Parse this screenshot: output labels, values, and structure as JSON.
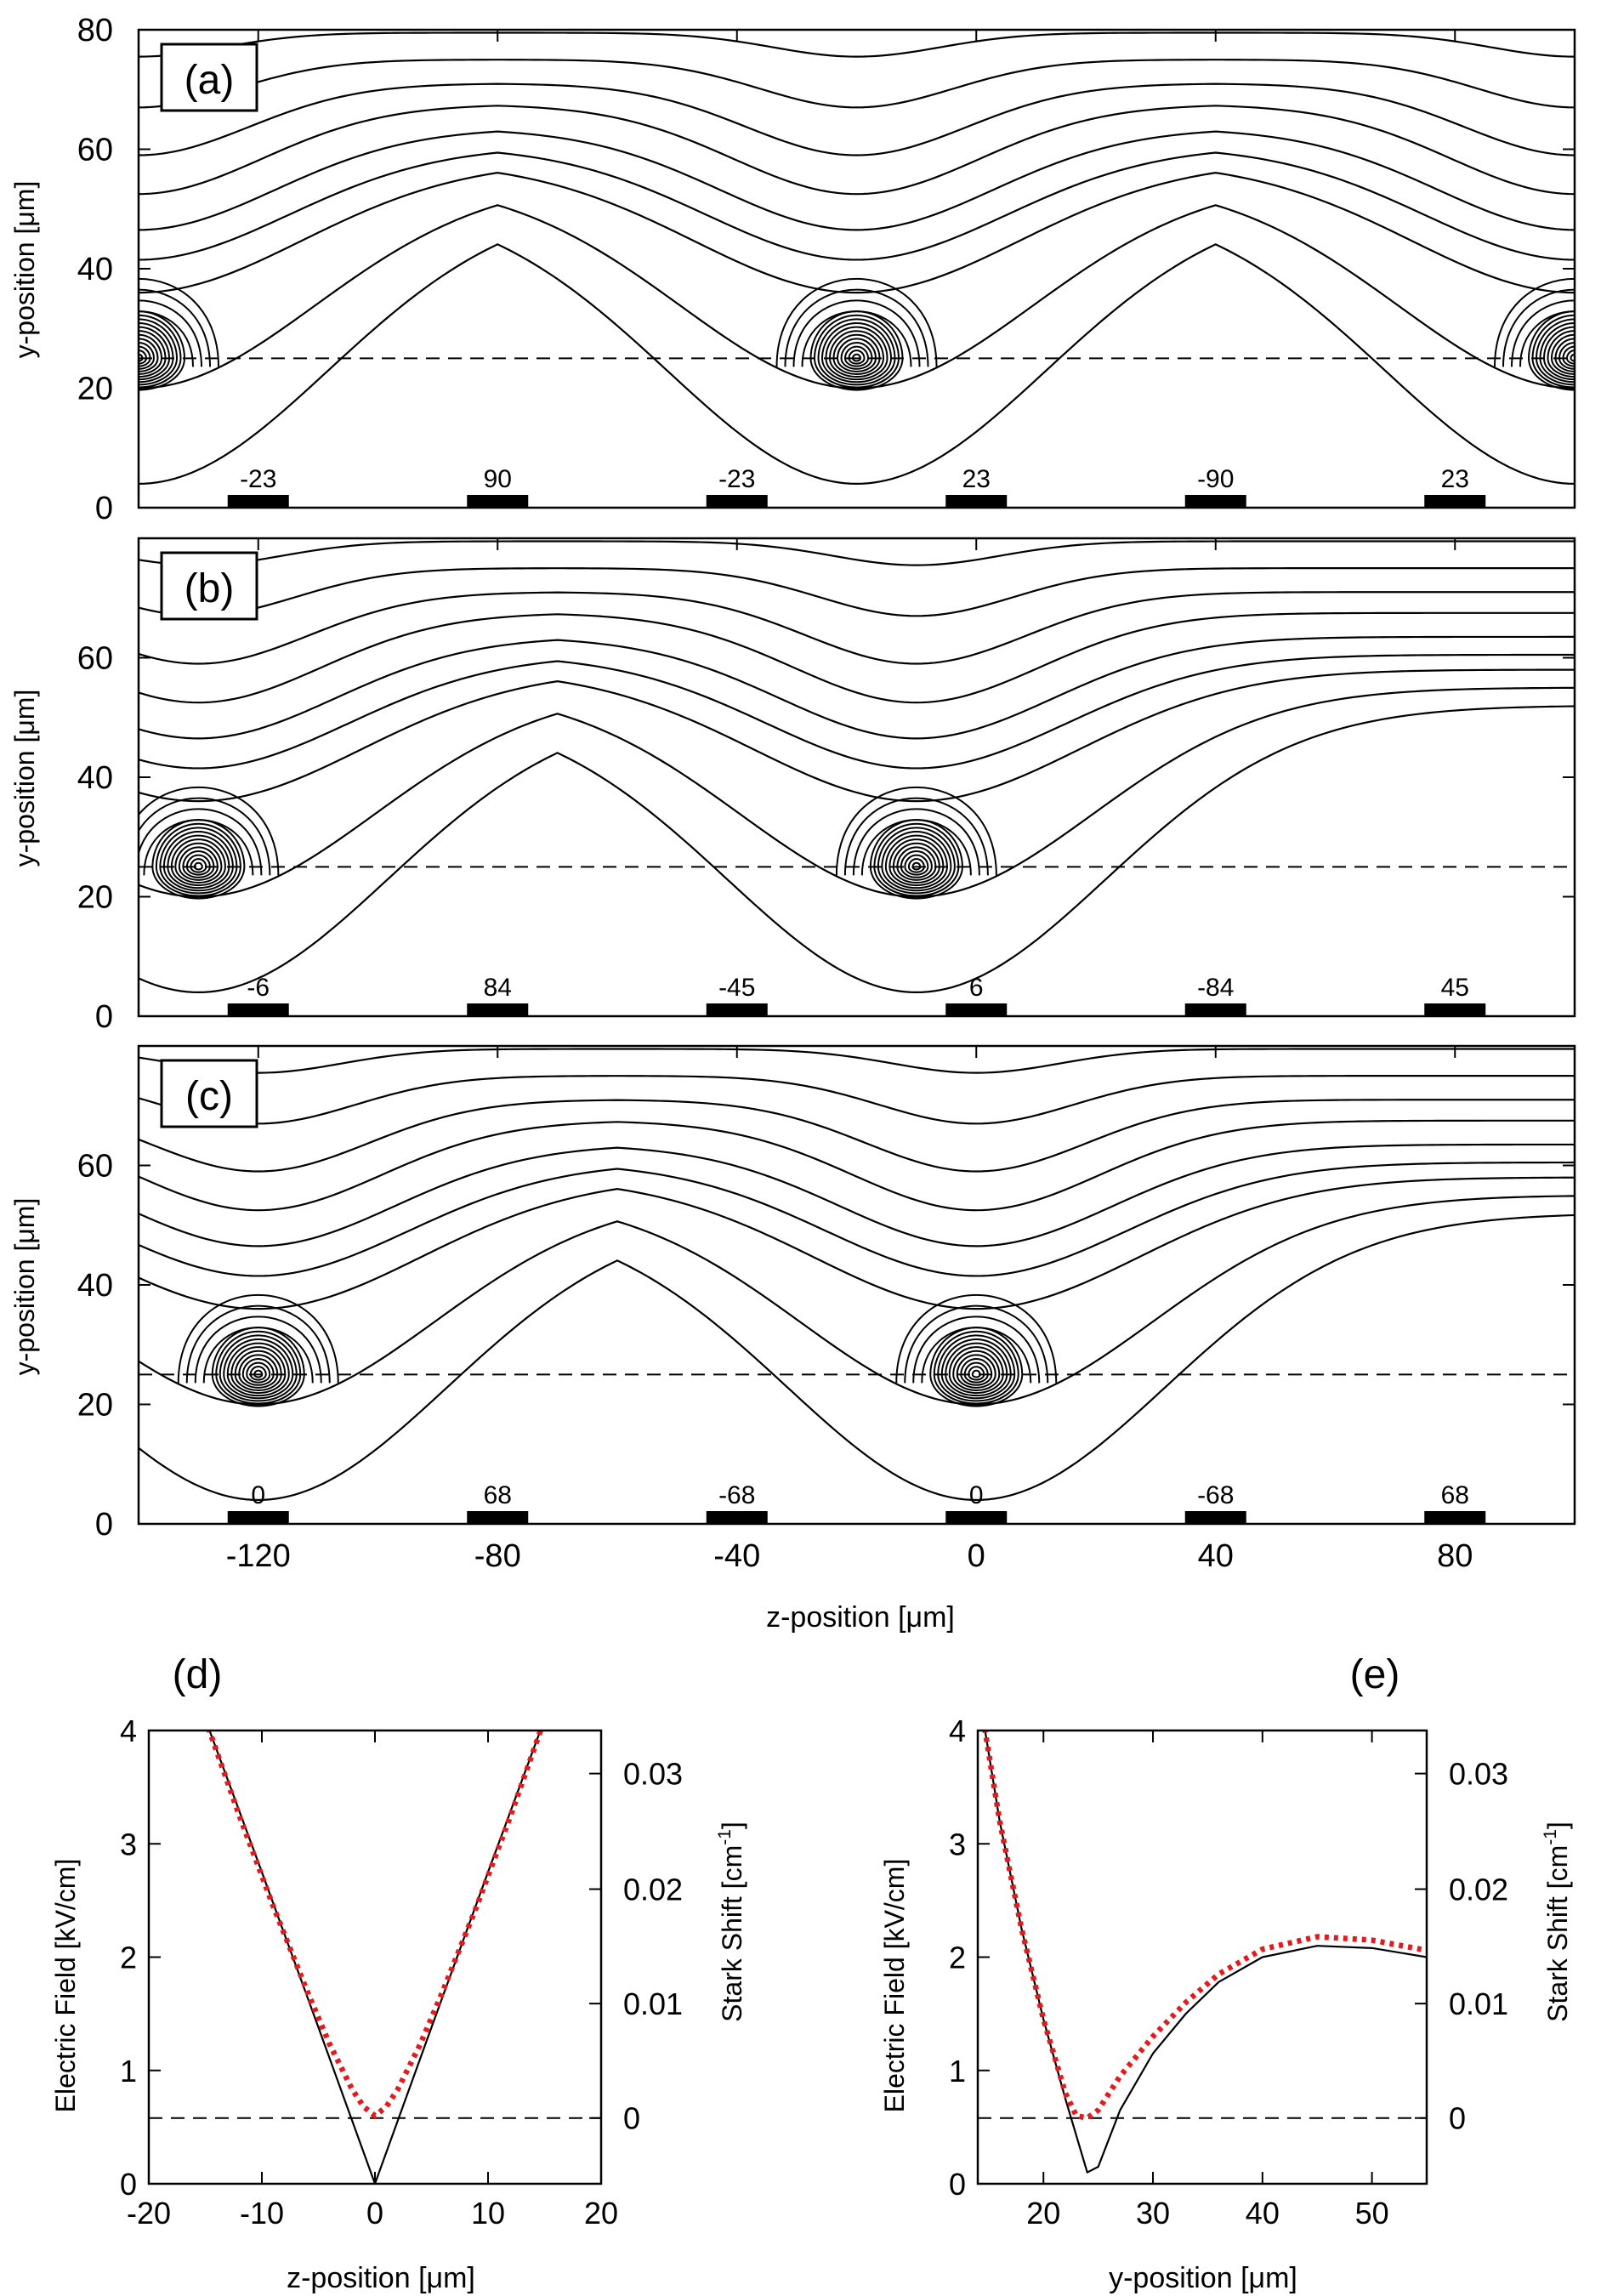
{
  "colors": {
    "axis": "#000000",
    "contour": "#000000",
    "stark": "#e41a1c",
    "electrode": "#000000"
  },
  "chart_data": [
    {
      "id": "panel-a",
      "type": "contour",
      "panel_label": "(a)",
      "ylabel": "y-position [μm]",
      "xlim": [
        -140,
        100
      ],
      "ylim": [
        0,
        80
      ],
      "yticks": [
        0,
        20,
        40,
        60,
        80
      ],
      "xticks": [
        -120,
        -80,
        -40,
        0,
        40,
        80
      ],
      "trap_height_line": 25,
      "electrode_positions": [
        -120,
        -80,
        -40,
        0,
        40,
        80
      ],
      "electrode_voltages": [
        "-23",
        "90",
        "-23",
        "23",
        "-90",
        "23"
      ],
      "trap_centers": [
        [
          -140,
          25
        ],
        [
          -20,
          25
        ],
        [
          100,
          25
        ]
      ]
    },
    {
      "id": "panel-b",
      "type": "contour",
      "panel_label": "(b)",
      "ylabel": "y-position [μm]",
      "xlim": [
        -140,
        100
      ],
      "ylim": [
        0,
        80
      ],
      "yticks": [
        0,
        20,
        40,
        60
      ],
      "xticks": [
        -120,
        -80,
        -40,
        0,
        40,
        80
      ],
      "trap_height_line": 25,
      "electrode_positions": [
        -120,
        -80,
        -40,
        0,
        40,
        80
      ],
      "electrode_voltages": [
        "-6",
        "84",
        "-45",
        "6",
        "-84",
        "45"
      ],
      "trap_centers": [
        [
          -130,
          25
        ],
        [
          -10,
          25
        ]
      ]
    },
    {
      "id": "panel-c",
      "type": "contour",
      "panel_label": "(c)",
      "ylabel": "y-position [μm]",
      "xlabel": "z-position [μm]",
      "xlim": [
        -140,
        100
      ],
      "ylim": [
        0,
        80
      ],
      "yticks": [
        0,
        20,
        40,
        60
      ],
      "xticks": [
        -120,
        -80,
        -40,
        0,
        40,
        80
      ],
      "x_tick_labels": [
        "-120",
        "-80",
        "-40",
        "0",
        "40",
        "80"
      ],
      "trap_height_line": 25,
      "electrode_positions": [
        -120,
        -80,
        -40,
        0,
        40,
        80
      ],
      "electrode_voltages": [
        "0",
        "68",
        "-68",
        "0",
        "-68",
        "68"
      ],
      "trap_centers": [
        [
          -120,
          25
        ],
        [
          0,
          25
        ]
      ]
    },
    {
      "id": "panel-d",
      "type": "line",
      "panel_label": "(d)",
      "xlabel": "z-position [μm]",
      "ylabel": "Electric Field [kV/cm]",
      "y2label": "Stark Shift [cm",
      "y2label_sup": "-1",
      "y2label_end": "]",
      "xlim": [
        -20,
        20
      ],
      "ylim": [
        0,
        4
      ],
      "xticks": [
        -20,
        -10,
        0,
        10,
        20
      ],
      "x_tick_labels": [
        "-20",
        "-10",
        "0",
        "10",
        "20"
      ],
      "yticks": [
        0,
        1,
        2,
        3,
        4
      ],
      "y_tick_labels": [
        "0",
        "1",
        "2",
        "3",
        "4"
      ],
      "y2ticks": [
        {
          "value": 0.58,
          "label": "0"
        },
        {
          "value": 1.59,
          "label": "0.01"
        },
        {
          "value": 2.6,
          "label": "0.02"
        },
        {
          "value": 3.62,
          "label": "0.03"
        }
      ],
      "dashed_line_y": 0.58,
      "series": [
        {
          "name": "Electric Field",
          "style": "solid",
          "x": [
            -15,
            -10,
            -5,
            0,
            5,
            10,
            15
          ],
          "y": [
            4.1,
            2.75,
            1.38,
            0.0,
            1.38,
            2.75,
            4.1
          ]
        },
        {
          "name": "Stark Shift",
          "style": "dotted",
          "x": [
            -15,
            -12,
            -9,
            -6,
            -4,
            -2,
            -1,
            0,
            1,
            2,
            4,
            6,
            9,
            12,
            15
          ],
          "y": [
            4.1,
            3.25,
            2.45,
            1.7,
            1.23,
            0.83,
            0.68,
            0.6,
            0.68,
            0.83,
            1.23,
            1.7,
            2.45,
            3.25,
            4.1
          ]
        }
      ]
    },
    {
      "id": "panel-e",
      "type": "line",
      "panel_label": "(e)",
      "xlabel": "y-position [μm]",
      "ylabel": "Electric Field [kV/cm]",
      "y2label": "Stark Shift [cm",
      "y2label_sup": "-1",
      "y2label_end": "]",
      "xlim": [
        14,
        55
      ],
      "ylim": [
        0,
        4
      ],
      "xticks": [
        20,
        30,
        40,
        50
      ],
      "x_tick_labels": [
        "20",
        "30",
        "40",
        "50"
      ],
      "yticks": [
        0,
        1,
        2,
        3,
        4
      ],
      "y_tick_labels": [
        "0",
        "1",
        "2",
        "3",
        "4"
      ],
      "y2ticks": [
        {
          "value": 0.58,
          "label": "0"
        },
        {
          "value": 1.59,
          "label": "0.01"
        },
        {
          "value": 2.6,
          "label": "0.02"
        },
        {
          "value": 3.62,
          "label": "0.03"
        }
      ],
      "dashed_line_y": 0.58,
      "series": [
        {
          "name": "Electric Field",
          "style": "solid",
          "x": [
            14.5,
            16,
            18,
            20,
            22,
            24,
            25,
            27,
            30,
            33,
            36,
            40,
            45,
            50,
            55
          ],
          "y": [
            4.1,
            3.2,
            2.25,
            1.45,
            0.75,
            0.1,
            0.15,
            0.65,
            1.15,
            1.5,
            1.78,
            2.0,
            2.1,
            2.08,
            2.0
          ]
        },
        {
          "name": "Stark Shift",
          "style": "dotted",
          "x": [
            14.5,
            16,
            18,
            20,
            22,
            23,
            24,
            25,
            27,
            30,
            33,
            36,
            40,
            45,
            50,
            55
          ],
          "y": [
            4.1,
            3.2,
            2.25,
            1.45,
            0.8,
            0.6,
            0.58,
            0.65,
            0.95,
            1.3,
            1.6,
            1.85,
            2.07,
            2.18,
            2.15,
            2.06
          ]
        }
      ]
    }
  ]
}
